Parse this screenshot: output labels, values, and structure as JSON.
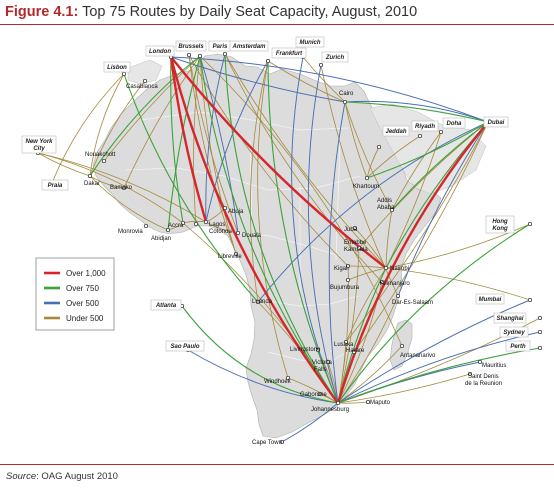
{
  "title": {
    "label": "Figure 4.1:",
    "text": "Top 75 Routes by Daily Seat Capacity, August, 2010"
  },
  "source": {
    "label": "Source",
    "text": ": OAG August 2010"
  },
  "legend": [
    {
      "label": "Over 1,000",
      "color": "#d7262b"
    },
    {
      "label": "Over 750",
      "color": "#3ca23c"
    },
    {
      "label": "Over 500",
      "color": "#4a6fb5"
    },
    {
      "label": "Under 500",
      "color": "#a58a3c"
    }
  ],
  "boxed_cities": [
    "Lisbon",
    "London",
    "Brussels",
    "Paris",
    "Amsterdam",
    "Munich",
    "Frankfurt",
    "Zurich",
    "New York City",
    "Praia",
    "Jeddah",
    "Riyadh",
    "Doha",
    "Dubai",
    "Hong Kong",
    "Atlanta",
    "Mumbai",
    "Shanghai",
    "Sydney",
    "Perth",
    "Sao Paulo"
  ],
  "cities": [
    "Casablanca",
    "Cairo",
    "Nouakchott",
    "Dakar",
    "Bamako",
    "Khartoum",
    "Addis Ababa",
    "Abuja",
    "Accra",
    "Lagos",
    "Cotonou",
    "Monrovia",
    "Abidjan",
    "Douala",
    "Juba",
    "Entebbe Kampala",
    "Libreville",
    "Kigali",
    "Nairobi",
    "Bujumbura",
    "Kilimanjaro",
    "Dar-Es-Salaam",
    "Luanda",
    "Lusaka",
    "Livingstone",
    "Harare",
    "Victoria Falls",
    "Antananarivo",
    "Mauritius",
    "Saint Denis de la Reunion",
    "Windhoek",
    "Gaborone",
    "Maputo",
    "Johannesburg",
    "Cape Town"
  ]
}
